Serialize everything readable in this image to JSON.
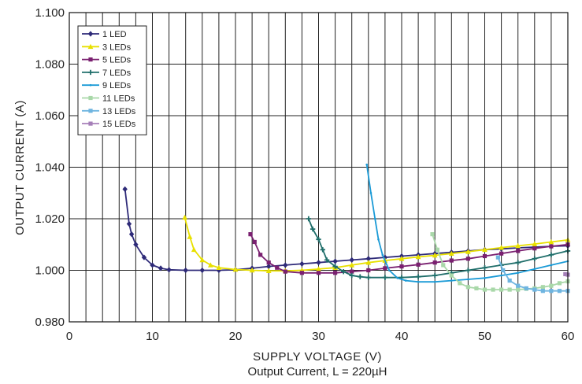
{
  "chart_data": {
    "type": "line",
    "title": "",
    "caption": "Output Current, L = 220µH",
    "xlabel": "SUPPLY VOLTAGE (V)",
    "ylabel": "OUTPUT CURRENT (A)",
    "xlim": [
      0,
      60
    ],
    "ylim": [
      0.98,
      1.1
    ],
    "xticks": [
      0,
      10,
      20,
      30,
      40,
      50,
      60
    ],
    "xtick_labels": [
      "0",
      "10",
      "20",
      "30",
      "40",
      "50",
      "60"
    ],
    "yticks": [
      0.98,
      1.0,
      1.02,
      1.04,
      1.06,
      1.08,
      1.1
    ],
    "ytick_labels": [
      "0.980",
      "1.000",
      "1.020",
      "1.040",
      "1.060",
      "1.080",
      "1.100"
    ],
    "grid": true,
    "legend_position": "top-left",
    "series": [
      {
        "name": "1 LED",
        "color": "#2e2a78",
        "marker": "diamond",
        "x": [
          6.7,
          7.2,
          7.5,
          8.0,
          9.0,
          10.0,
          11.0,
          12.0,
          14.0,
          16.0,
          18.0,
          20.0,
          22.0,
          24.0,
          26.0,
          28.0,
          30.0,
          32.0,
          34.0,
          36.0,
          38.0,
          40.0,
          42.0,
          44.0,
          46.0,
          48.0,
          50.0,
          52.0,
          54.0,
          56.0,
          58.0,
          60.0
        ],
        "y": [
          1.0315,
          1.018,
          1.014,
          1.01,
          1.005,
          1.002,
          1.0008,
          1.0002,
          1.0,
          1.0,
          1.0,
          1.0002,
          1.0008,
          1.0015,
          1.002,
          1.0025,
          1.003,
          1.0035,
          1.004,
          1.0045,
          1.005,
          1.0055,
          1.006,
          1.0065,
          1.007,
          1.0075,
          1.008,
          1.0083,
          1.0087,
          1.009,
          1.0093,
          1.0095
        ]
      },
      {
        "name": "3 LEDs",
        "color": "#e8e000",
        "marker": "triangle",
        "x": [
          13.9,
          14.5,
          15.0,
          16.0,
          17.0,
          18.0,
          20.0,
          22.0,
          24.0,
          26.0,
          28.0,
          30.0,
          32.0,
          34.0,
          36.0,
          38.0,
          40.0,
          42.0,
          44.0,
          46.0,
          48.0,
          50.0,
          52.0,
          54.0,
          56.0,
          58.0,
          60.0
        ],
        "y": [
          1.0205,
          1.013,
          1.008,
          1.004,
          1.002,
          1.001,
          1.0003,
          1.0,
          0.9998,
          0.9998,
          1.0,
          1.0005,
          1.001,
          1.002,
          1.003,
          1.0038,
          1.0045,
          1.0052,
          1.0058,
          1.0065,
          1.0072,
          1.008,
          1.0088,
          1.0095,
          1.0102,
          1.011,
          1.0118
        ]
      },
      {
        "name": "5 LEDs",
        "color": "#7a2070",
        "marker": "square",
        "x": [
          21.8,
          22.3,
          23.0,
          24.0,
          25.0,
          26.0,
          28.0,
          30.0,
          32.0,
          34.0,
          36.0,
          38.0,
          40.0,
          42.0,
          44.0,
          46.0,
          48.0,
          50.0,
          52.0,
          54.0,
          56.0,
          58.0,
          60.0
        ],
        "y": [
          1.014,
          1.011,
          1.006,
          1.003,
          1.001,
          0.9995,
          0.999,
          0.999,
          0.999,
          0.9995,
          1.0,
          1.0008,
          1.0015,
          1.0022,
          1.003,
          1.0038,
          1.0045,
          1.0055,
          1.0065,
          1.0075,
          1.0085,
          1.0093,
          1.01
        ]
      },
      {
        "name": "7 LEDs",
        "color": "#1f6e6a",
        "marker": "plus",
        "x": [
          28.8,
          29.3,
          30.0,
          30.5,
          31.0,
          32.0,
          33.0,
          34.0,
          35.0,
          36.0,
          38.0,
          40.0,
          42.0,
          44.0,
          46.0,
          48.0,
          50.0,
          52.0,
          54.0,
          56.0,
          58.0,
          60.0
        ],
        "y": [
          1.02,
          1.016,
          1.012,
          1.008,
          1.004,
          1.0015,
          0.9995,
          0.998,
          0.9975,
          0.9972,
          0.9972,
          0.9972,
          0.9975,
          0.998,
          0.999,
          1.0,
          1.001,
          1.002,
          1.003,
          1.0045,
          1.006,
          1.0075
        ]
      },
      {
        "name": "9 LEDs",
        "color": "#1a9ad6",
        "marker": "none",
        "x": [
          35.8,
          36.3,
          36.8,
          37.2,
          37.7,
          38.5,
          39.5,
          40.5,
          42.0,
          44.0,
          46.0,
          48.0,
          50.0,
          52.0,
          54.0,
          56.0,
          58.0,
          60.0
        ],
        "y": [
          1.041,
          1.03,
          1.02,
          1.012,
          1.006,
          1.0,
          0.997,
          0.996,
          0.9955,
          0.9955,
          0.996,
          0.9965,
          0.997,
          0.998,
          0.999,
          1.0005,
          1.002,
          1.0035
        ]
      },
      {
        "name": "11 LEDs",
        "color": "#a9d8a9",
        "marker": "square",
        "x": [
          43.7,
          44.3,
          45.0,
          46.0,
          47.0,
          48.0,
          49.0,
          50.0,
          51.0,
          52.0,
          53.0,
          54.0,
          55.0,
          56.0,
          57.0,
          58.0,
          59.0,
          60.0
        ],
        "y": [
          1.014,
          1.008,
          1.002,
          0.998,
          0.995,
          0.9935,
          0.993,
          0.9925,
          0.9925,
          0.9925,
          0.9925,
          0.9925,
          0.9928,
          0.993,
          0.9935,
          0.994,
          0.995,
          0.9957
        ]
      },
      {
        "name": "13 LEDs",
        "color": "#6fb5e0",
        "marker": "square",
        "x": [
          51.6,
          52.2,
          53.0,
          54.0,
          55.0,
          56.0,
          57.0,
          58.0,
          59.0,
          60.0
        ],
        "y": [
          1.005,
          1.0,
          0.996,
          0.994,
          0.993,
          0.9925,
          0.992,
          0.992,
          0.992,
          0.992
        ]
      },
      {
        "name": "15 LEDs",
        "color": "#a57fb8",
        "marker": "square",
        "x": [
          59.7,
          60.0
        ],
        "y": [
          0.9985,
          0.9983
        ]
      }
    ]
  }
}
